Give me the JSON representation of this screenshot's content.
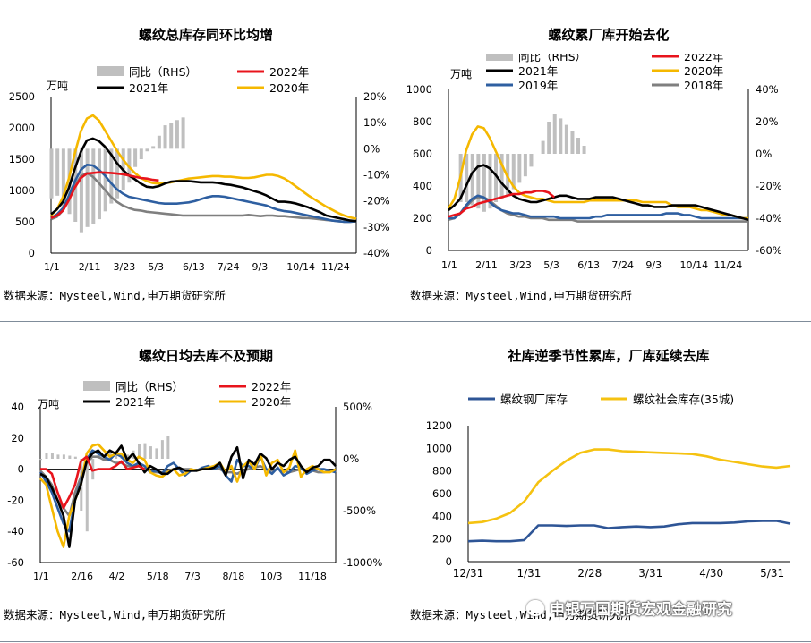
{
  "panels": {
    "p1": {
      "title": "螺纹总库存同环比均增",
      "source": "数据来源：Mysteel,Wind,申万期货研究所"
    },
    "p2": {
      "title": "螺纹累厂库开始去化",
      "source": "数据来源：Mysteel,Wind,申万期货研究所"
    },
    "p3": {
      "title": "螺纹日均去库不及预期",
      "source": "数据来源：Mysteel,Wind,申万期货研究所"
    },
    "p4": {
      "title": "社库逆季节性累库，厂库延续去库",
      "source": "数据来源：Mysteel,Wind,申万期货研究所"
    }
  },
  "watermark": "申银万国期货宏观金融研究",
  "colors": {
    "y2022": "#e8141c",
    "y2021": "#000000",
    "y2020": "#f5b800",
    "y2019": "#2e5fa1",
    "y2018": "#7f7f7f",
    "rhs": "#bfbfbf",
    "factory": "#2e5596",
    "social": "#f5c211"
  },
  "chart_data": [
    {
      "type": "line",
      "title": "螺纹总库存同环比均增",
      "ylabel": "万吨",
      "ylim": [
        0,
        2500
      ],
      "yticks": [
        "0",
        "500",
        "1000",
        "1500",
        "2000",
        "2500"
      ],
      "y2lim": [
        -40,
        20
      ],
      "y2ticks": [
        "-40%",
        "-30%",
        "-20%",
        "-10%",
        "0%",
        "10%",
        "20%"
      ],
      "xticks": [
        "1/1",
        "2/11",
        "3/23",
        "5/3",
        "6/13",
        "7/24",
        "9/3",
        "10/14",
        "11/24"
      ],
      "legend": [
        "同比（RHS）",
        "2022年",
        "2021年",
        "2020年"
      ],
      "x_weeks": 52,
      "rhs_bars": [
        -19,
        -18,
        -23,
        -25,
        -28,
        -32,
        -30,
        -29,
        -27,
        -24,
        -21,
        -19,
        -16,
        -13,
        -7,
        -4,
        -1,
        1,
        5,
        9,
        10,
        11,
        12
      ],
      "series": [
        {
          "name": "2022年",
          "color": "y2022",
          "values": [
            560,
            600,
            680,
            850,
            1050,
            1200,
            1270,
            1280,
            1290,
            1285,
            1280,
            1270,
            1260,
            1240,
            1220,
            1200,
            1190,
            1170,
            1160
          ]
        },
        {
          "name": "2021年",
          "color": "y2021",
          "values": [
            620,
            700,
            820,
            1050,
            1350,
            1620,
            1800,
            1830,
            1790,
            1700,
            1580,
            1440,
            1330,
            1240,
            1180,
            1110,
            1060,
            1050,
            1070,
            1110,
            1140,
            1150,
            1150,
            1150,
            1140,
            1130,
            1130,
            1130,
            1120,
            1100,
            1090,
            1070,
            1050,
            1020,
            990,
            960,
            920,
            870,
            820,
            820,
            810,
            790,
            760,
            730,
            690,
            650,
            600,
            580,
            560,
            540,
            520,
            510
          ]
        },
        {
          "name": "2020年",
          "color": "y2020",
          "values": [
            600,
            700,
            900,
            1200,
            1600,
            1950,
            2150,
            2200,
            2120,
            1960,
            1800,
            1640,
            1500,
            1380,
            1280,
            1200,
            1150,
            1120,
            1110,
            1120,
            1130,
            1150,
            1170,
            1190,
            1200,
            1210,
            1220,
            1230,
            1230,
            1220,
            1220,
            1210,
            1200,
            1200,
            1210,
            1230,
            1250,
            1250,
            1230,
            1190,
            1130,
            1060,
            990,
            920,
            860,
            800,
            740,
            690,
            640,
            600,
            570,
            550
          ]
        },
        {
          "name": "2019年",
          "color": "y2019",
          "values": [
            560,
            620,
            720,
            920,
            1150,
            1330,
            1410,
            1400,
            1330,
            1240,
            1120,
            1020,
            950,
            900,
            880,
            860,
            840,
            820,
            800,
            790,
            790,
            790,
            800,
            810,
            830,
            860,
            890,
            910,
            910,
            900,
            880,
            860,
            840,
            820,
            800,
            780,
            760,
            720,
            690,
            670,
            660,
            640,
            620,
            600,
            580,
            560,
            540,
            520,
            510,
            500,
            500,
            510
          ]
        },
        {
          "name": "2018年",
          "color": "y2018",
          "values": [
            540,
            580,
            680,
            880,
            1080,
            1230,
            1280,
            1220,
            1120,
            1010,
            900,
            820,
            760,
            720,
            690,
            680,
            660,
            650,
            640,
            630,
            620,
            610,
            600,
            600,
            600,
            600,
            600,
            600,
            600,
            600,
            600,
            600,
            600,
            610,
            600,
            590,
            600,
            600,
            590,
            590,
            580,
            570,
            560,
            560,
            550,
            540,
            530,
            520,
            510,
            500,
            500,
            510
          ]
        }
      ]
    },
    {
      "type": "line",
      "title": "螺纹累厂库开始去化",
      "ylabel": "万吨",
      "ylim": [
        0,
        1000
      ],
      "yticks": [
        "0",
        "200",
        "400",
        "600",
        "800",
        "1000"
      ],
      "y2lim": [
        -60,
        40
      ],
      "y2ticks": [
        "-60%",
        "-40%",
        "-20%",
        "0%",
        "20%",
        "40%"
      ],
      "xticks": [
        "1/1",
        "2/11",
        "3/23",
        "5/3",
        "6/13",
        "7/24",
        "9/3",
        "10/14",
        "11/24"
      ],
      "legend": [
        "同比（RHS）",
        "2022年",
        "2021年",
        "2020年",
        "2019年",
        "2018年"
      ],
      "x_weeks": 52,
      "rhs_bars": [
        0,
        0,
        -30,
        -30,
        -32,
        -34,
        -36,
        -34,
        -30,
        -28,
        -26,
        -22,
        -18,
        -14,
        -8,
        0,
        8,
        20,
        25,
        22,
        18,
        14,
        10,
        5
      ],
      "series": [
        {
          "name": "2022年",
          "color": "y2022",
          "values": [
            210,
            220,
            230,
            260,
            270,
            290,
            300,
            310,
            320,
            330,
            340,
            350,
            350,
            360,
            360,
            370,
            370,
            360,
            330
          ]
        },
        {
          "name": "2021年",
          "color": "y2021",
          "values": [
            250,
            280,
            320,
            400,
            480,
            520,
            530,
            510,
            470,
            420,
            380,
            340,
            320,
            310,
            300,
            300,
            310,
            320,
            330,
            340,
            340,
            330,
            320,
            320,
            320,
            330,
            330,
            330,
            330,
            320,
            310,
            300,
            290,
            280,
            280,
            270,
            270,
            270,
            280,
            280,
            280,
            280,
            280,
            270,
            260,
            250,
            240,
            230,
            220,
            210,
            200,
            190
          ]
        },
        {
          "name": "2020年",
          "color": "y2020",
          "values": [
            260,
            320,
            450,
            620,
            720,
            770,
            760,
            700,
            620,
            540,
            460,
            400,
            360,
            340,
            330,
            320,
            320,
            310,
            300,
            300,
            300,
            300,
            300,
            300,
            310,
            310,
            310,
            310,
            310,
            310,
            310,
            310,
            310,
            300,
            300,
            300,
            300,
            300,
            280,
            270,
            270,
            270,
            260,
            250,
            250,
            240,
            230,
            220,
            220,
            210,
            200,
            200
          ]
        },
        {
          "name": "2019年",
          "color": "y2019",
          "values": [
            200,
            200,
            230,
            280,
            320,
            340,
            330,
            300,
            270,
            250,
            240,
            230,
            230,
            220,
            210,
            210,
            210,
            210,
            210,
            200,
            200,
            200,
            200,
            200,
            200,
            210,
            210,
            220,
            220,
            220,
            220,
            220,
            220,
            220,
            220,
            220,
            220,
            230,
            230,
            230,
            220,
            220,
            210,
            200,
            200,
            200,
            200,
            200,
            200,
            200,
            200,
            200
          ]
        },
        {
          "name": "2018年",
          "color": "y2018",
          "values": [
            190,
            200,
            230,
            270,
            310,
            330,
            330,
            310,
            280,
            250,
            230,
            220,
            210,
            210,
            200,
            200,
            200,
            190,
            190,
            190,
            190,
            190,
            180,
            180,
            180,
            180,
            180,
            180,
            180,
            180,
            180,
            180,
            180,
            180,
            180,
            180,
            180,
            180,
            180,
            180,
            180,
            180,
            180,
            180,
            180,
            180,
            180,
            180,
            180,
            180,
            180,
            180
          ]
        }
      ]
    },
    {
      "type": "line",
      "title": "螺纹日均去库不及预期",
      "ylabel": "万吨",
      "ylim": [
        -60,
        40
      ],
      "yticks": [
        "-60",
        "-40",
        "-20",
        "0",
        "20",
        "40"
      ],
      "y2lim": [
        -1000,
        500
      ],
      "y2ticks": [
        "-1000%",
        "-500%",
        "0%",
        "500%"
      ],
      "xticks": [
        "1/1",
        "2/16",
        "4/2",
        "5/18",
        "7/3",
        "8/18",
        "10/3",
        "11/18"
      ],
      "legend": [
        "同比（RHS）",
        "2022年",
        "2021年",
        "2020年"
      ],
      "x_weeks": 52,
      "rhs_bars": [
        -10,
        60,
        60,
        40,
        40,
        30,
        20,
        -500,
        -700,
        -200,
        60,
        40,
        60,
        80,
        30,
        40,
        80,
        140,
        150,
        120,
        100,
        180,
        220
      ],
      "series": [
        {
          "name": "2022年",
          "color": "y2022",
          "values": [
            0,
            0,
            -3,
            -15,
            -25,
            -18,
            -10,
            5,
            8,
            -1,
            0,
            0,
            0,
            2,
            5,
            0,
            1,
            2,
            0
          ]
        },
        {
          "name": "2021年",
          "color": "y2021",
          "values": [
            -3,
            -5,
            -12,
            -20,
            -30,
            -50,
            -20,
            -10,
            5,
            10,
            12,
            8,
            12,
            10,
            15,
            6,
            10,
            4,
            -2,
            2,
            0,
            -3,
            -3,
            0,
            1,
            -1,
            -1,
            -1,
            0,
            0,
            1,
            4,
            -4,
            8,
            14,
            -6,
            6,
            3,
            10,
            7,
            0,
            4,
            2,
            6,
            8,
            2,
            -2,
            1,
            2,
            6,
            6,
            2
          ]
        },
        {
          "name": "2020年",
          "color": "y2020",
          "values": [
            -6,
            -10,
            -25,
            -40,
            -50,
            -30,
            -20,
            -10,
            10,
            15,
            16,
            12,
            8,
            10,
            10,
            6,
            4,
            8,
            6,
            -2,
            -4,
            -5,
            -2,
            0,
            -4,
            -3,
            0,
            -1,
            0,
            1,
            2,
            4,
            -2,
            2,
            -8,
            2,
            5,
            0,
            10,
            -4,
            4,
            6,
            -2,
            1,
            12,
            -5,
            0,
            2,
            0,
            -2,
            -2,
            0
          ]
        },
        {
          "name": "2019年",
          "color": "y2019",
          "values": [
            -2,
            -8,
            -15,
            -25,
            -35,
            -40,
            -20,
            -8,
            6,
            12,
            10,
            8,
            6,
            10,
            8,
            4,
            2,
            4,
            2,
            -2,
            -1,
            -3,
            2,
            4,
            0,
            -4,
            -1,
            -1,
            1,
            2,
            0,
            2,
            -4,
            -8,
            6,
            2,
            2,
            0,
            8,
            0,
            -3,
            1,
            -4,
            -2,
            2,
            1,
            -3,
            -1,
            0,
            0,
            -1,
            -2
          ]
        },
        {
          "name": "2018年",
          "color": "y2018",
          "values": [
            -1,
            -5,
            -10,
            -20,
            -25,
            -30,
            -15,
            -5,
            4,
            8,
            8,
            6,
            6,
            4,
            4,
            2,
            2,
            2,
            0,
            -1,
            -2,
            -2,
            -1,
            0,
            0,
            0,
            0,
            -1,
            1,
            0,
            0,
            0,
            -2,
            -2,
            -3,
            -1,
            0,
            1,
            2,
            0,
            -1,
            0,
            -1,
            -2,
            -1,
            0,
            -1,
            -1,
            -2,
            -2,
            -1,
            -2
          ]
        }
      ]
    },
    {
      "type": "line",
      "title": "社库逆季节性累库，厂库延续去库",
      "ylim": [
        0,
        1200
      ],
      "yticks": [
        "0",
        "200",
        "400",
        "600",
        "800",
        "1000",
        "1200"
      ],
      "xticks": [
        "12/31",
        "1/31",
        "2/28",
        "3/31",
        "4/30",
        "5/31"
      ],
      "legend": [
        "螺纹钢厂库存",
        "螺纹社会库存(35城)"
      ],
      "series": [
        {
          "name": "螺纹钢厂库存",
          "color": "factory",
          "values": [
            180,
            185,
            180,
            180,
            190,
            320,
            320,
            315,
            320,
            320,
            295,
            305,
            310,
            305,
            310,
            330,
            340,
            340,
            340,
            345,
            355,
            360,
            360,
            335
          ]
        },
        {
          "name": "螺纹社会库存(35城)",
          "color": "social",
          "values": [
            340,
            350,
            380,
            430,
            530,
            700,
            800,
            890,
            960,
            990,
            990,
            975,
            970,
            965,
            960,
            955,
            950,
            930,
            900,
            880,
            860,
            840,
            830,
            845
          ]
        }
      ]
    }
  ]
}
